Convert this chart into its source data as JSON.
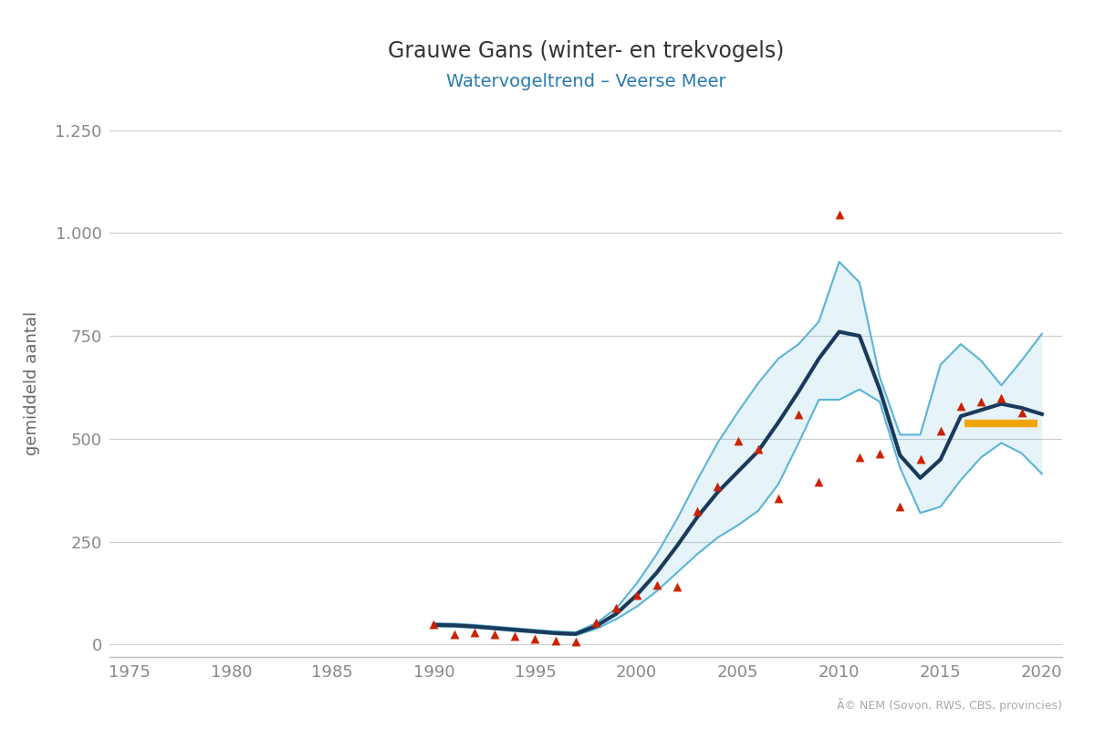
{
  "title": "Grauwe Gans (winter- en trekvogels)",
  "subtitle": "Watervogeltrend – Veerse Meer",
  "ylabel": "gemiddeld aantal",
  "copyright": "Ã© NEM (Sovon, RWS, CBS, provincies)",
  "title_color": "#333333",
  "subtitle_color": "#2a7aad",
  "ylabel_color": "#666666",
  "bg_color": "#ffffff",
  "grid_color": "#cccccc",
  "axis_color": "#bbbbbb",
  "tick_color": "#888888",
  "xlim": [
    1974,
    2021
  ],
  "ylim": [
    -30,
    1300
  ],
  "xticks": [
    1975,
    1980,
    1985,
    1990,
    1995,
    2000,
    2005,
    2010,
    2015,
    2020
  ],
  "yticks": [
    0,
    250,
    500,
    750,
    1000,
    1250
  ],
  "trend_years": [
    1990,
    1991,
    1992,
    1993,
    1994,
    1995,
    1996,
    1997,
    1998,
    1999,
    2000,
    2001,
    2002,
    2003,
    2004,
    2005,
    2006,
    2007,
    2008,
    2009,
    2010,
    2011,
    2012,
    2013,
    2014,
    2015,
    2016,
    2017,
    2018,
    2019,
    2020
  ],
  "trend_values": [
    48,
    47,
    44,
    40,
    36,
    32,
    28,
    26,
    45,
    75,
    120,
    175,
    240,
    310,
    370,
    420,
    470,
    540,
    615,
    695,
    760,
    750,
    620,
    460,
    405,
    450,
    555,
    570,
    585,
    575,
    560
  ],
  "ci_upper": [
    52,
    51,
    48,
    44,
    40,
    36,
    32,
    30,
    52,
    88,
    148,
    220,
    305,
    400,
    490,
    565,
    635,
    695,
    730,
    785,
    930,
    880,
    650,
    510,
    510,
    680,
    730,
    690,
    630,
    690,
    755
  ],
  "ci_lower": [
    44,
    43,
    41,
    37,
    33,
    29,
    25,
    23,
    38,
    62,
    92,
    130,
    175,
    220,
    260,
    290,
    325,
    390,
    490,
    595,
    595,
    620,
    590,
    430,
    320,
    335,
    400,
    455,
    490,
    465,
    415
  ],
  "obs_years": [
    1990,
    1991,
    1992,
    1993,
    1994,
    1995,
    1996,
    1997,
    1998,
    1999,
    2000,
    2001,
    2002,
    2003,
    2004,
    2005,
    2006,
    2007,
    2008,
    2009,
    2010,
    2011,
    2012,
    2013,
    2014,
    2015,
    2016,
    2017,
    2018,
    2019
  ],
  "obs_values": [
    50,
    25,
    30,
    25,
    20,
    15,
    10,
    8,
    55,
    90,
    120,
    145,
    140,
    325,
    385,
    495,
    475,
    355,
    560,
    395,
    1045,
    455,
    465,
    335,
    450,
    520,
    580,
    590,
    600,
    565
  ],
  "ref_line_start": 2016.2,
  "ref_line_end": 2019.8,
  "ref_line_value": 538,
  "trend_color": "#1a3a5c",
  "ci_color": "#5ab4d6",
  "obs_color": "#cc2200",
  "ref_color": "#f0a500",
  "trend_lw": 3.0,
  "ci_lw": 1.5,
  "ref_lw": 6
}
